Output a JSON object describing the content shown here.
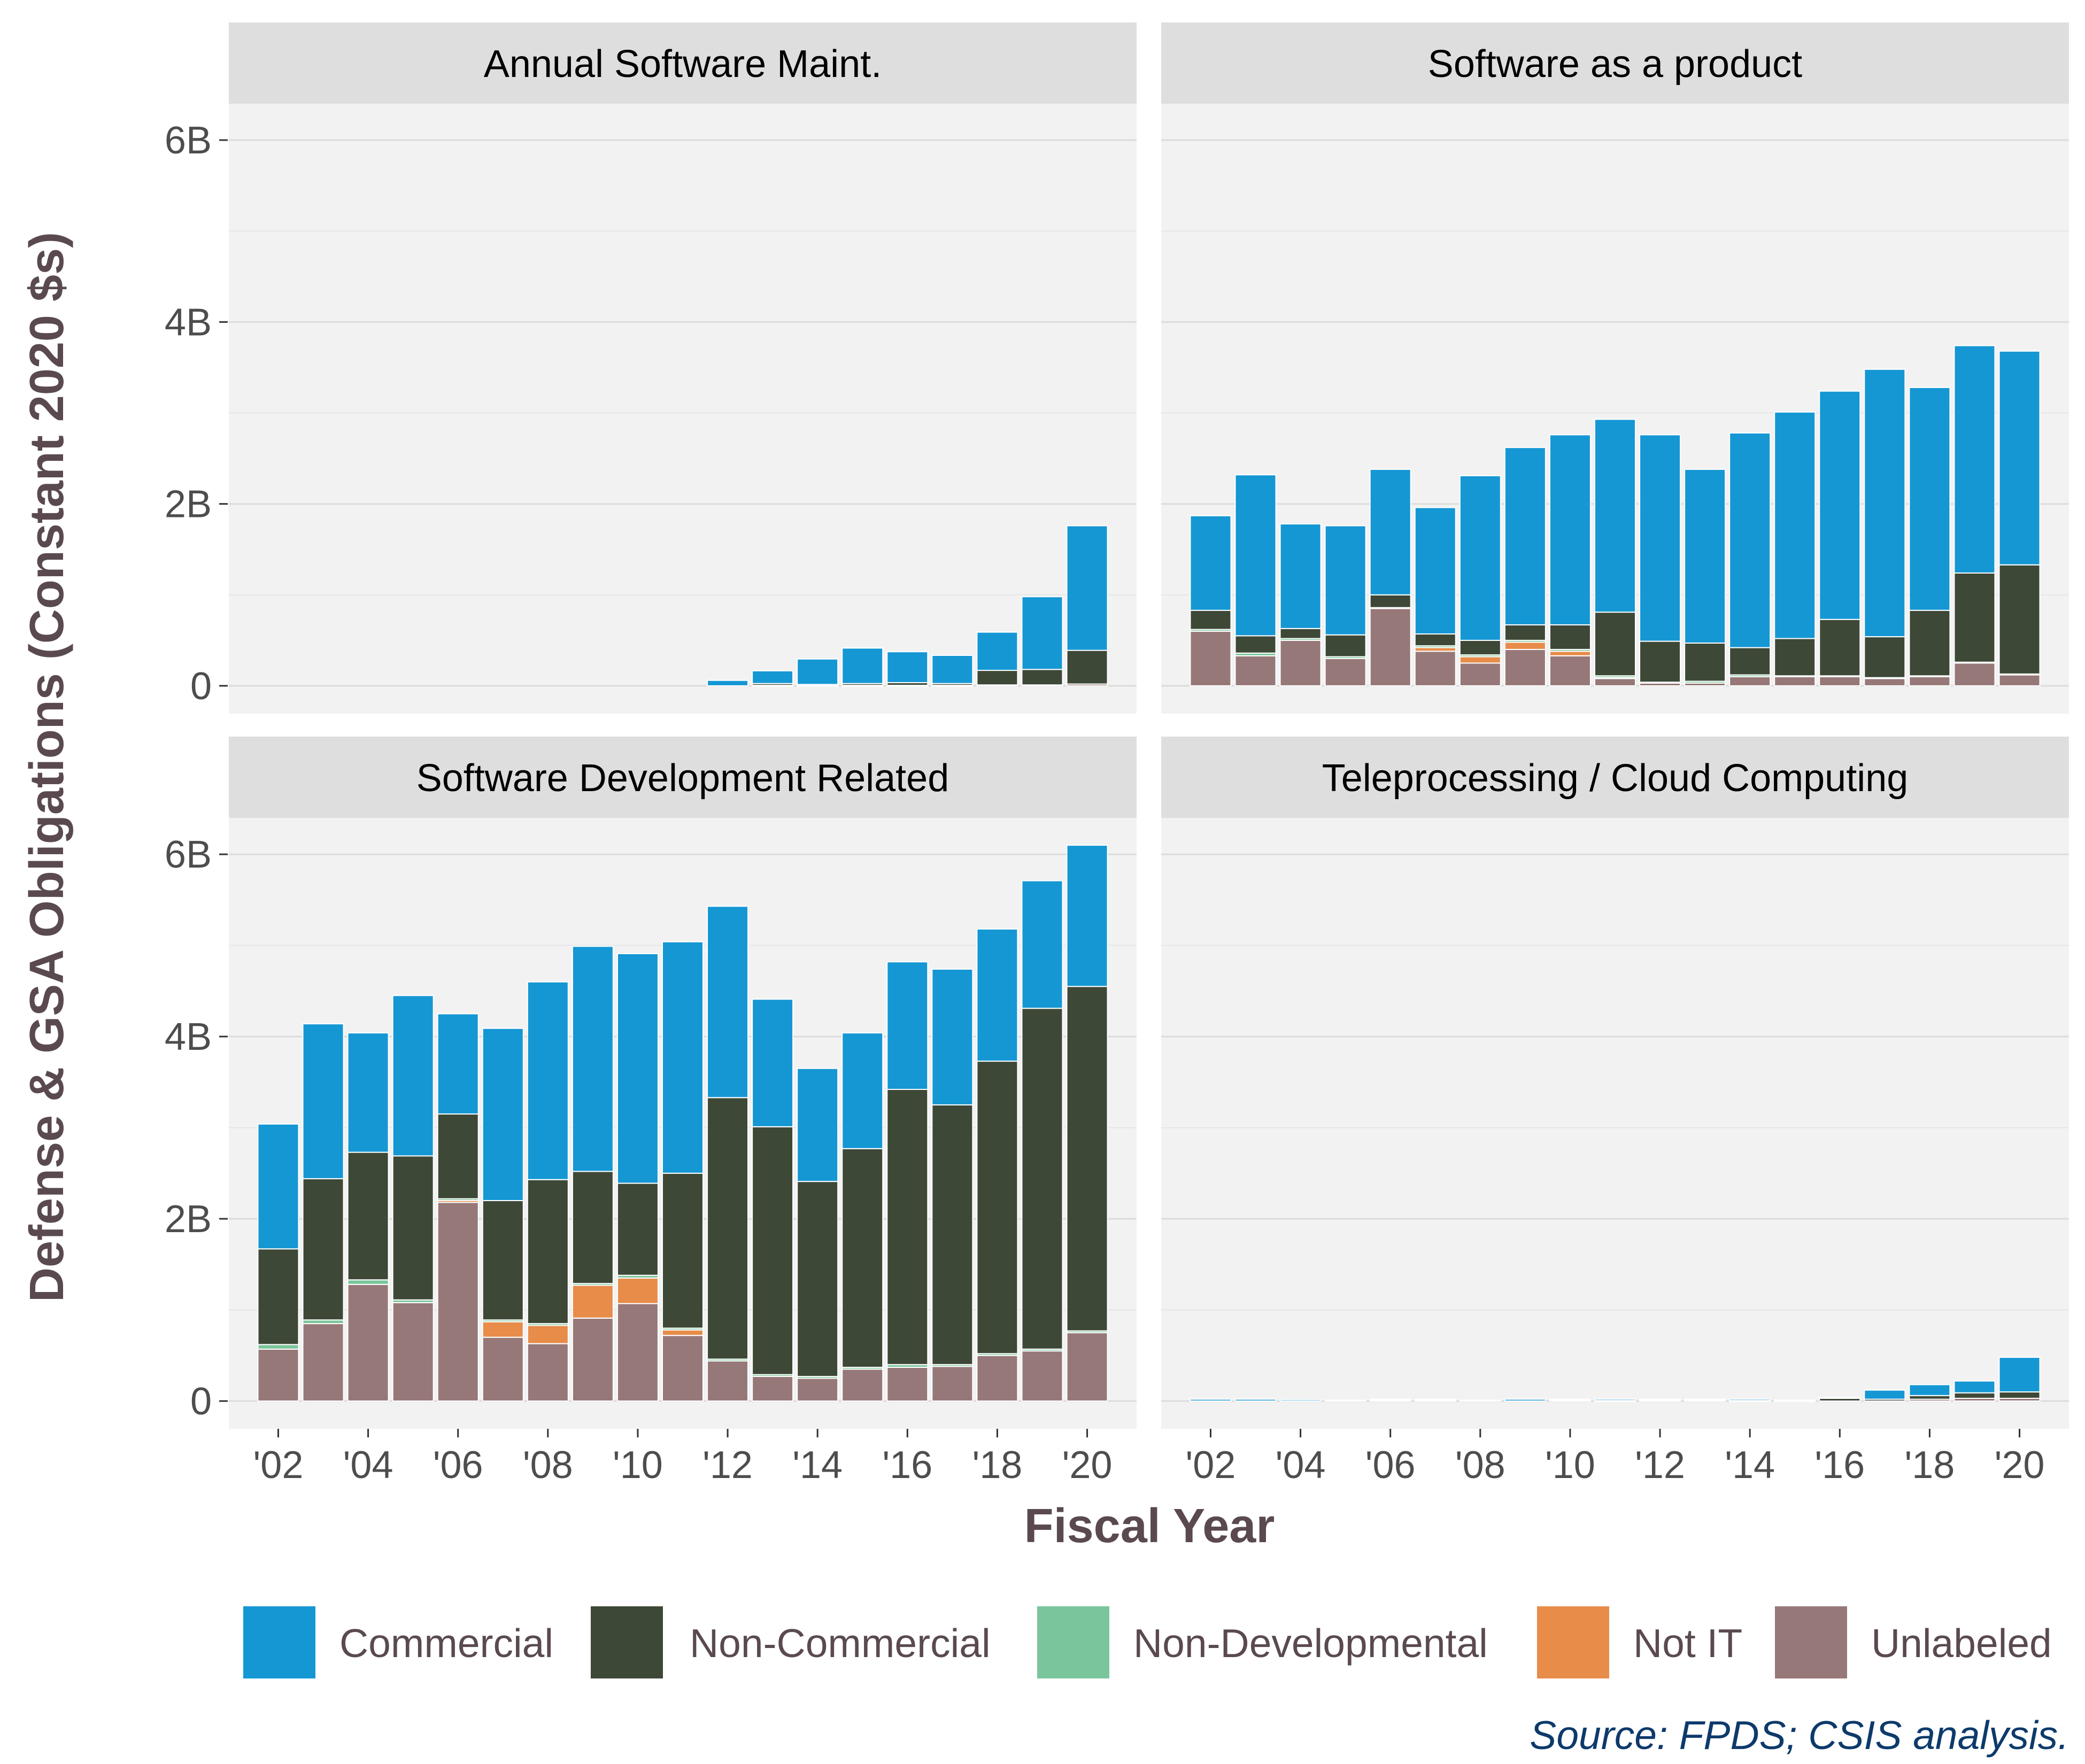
{
  "chart_data": {
    "type": "bar",
    "stacked": true,
    "facet_layout": "2x2",
    "xlabel": "Fiscal Year",
    "ylabel": "Defense & GSA Obligations (Constant 2020 $s)",
    "caption": "Source: FPDS; CSIS analysis.",
    "ylim": [
      0,
      6.4
    ],
    "yticks": [
      0,
      2,
      4,
      6
    ],
    "ytick_labels": [
      "0",
      "2B",
      "4B",
      "6B"
    ],
    "xlim": [
      2000.9,
      2021.1
    ],
    "xticks": [
      2002,
      2004,
      2006,
      2008,
      2010,
      2012,
      2014,
      2016,
      2018,
      2020
    ],
    "xtick_labels": [
      "'02",
      "'04",
      "'06",
      "'08",
      "'10",
      "'12",
      "'14",
      "'16",
      "'18",
      "'20"
    ],
    "legend_position": "bottom",
    "series": [
      {
        "name": "Commercial",
        "color": "#1597d4"
      },
      {
        "name": "Non-Commercial",
        "color": "#3d4837"
      },
      {
        "name": "Non-Developmental",
        "color": "#7ac59b"
      },
      {
        "name": "Not IT",
        "color": "#e88c4a"
      },
      {
        "name": "Unlabeled",
        "color": "#977878"
      }
    ],
    "years": [
      2002,
      2003,
      2004,
      2005,
      2006,
      2007,
      2008,
      2009,
      2010,
      2011,
      2012,
      2013,
      2014,
      2015,
      2016,
      2017,
      2018,
      2019,
      2020
    ],
    "facets": [
      {
        "title": "Annual Software Maint.",
        "stack": {
          "Unlabeled": [
            0,
            0,
            0,
            0,
            0,
            0,
            0,
            0,
            0,
            0,
            0,
            0.005,
            0.005,
            0.005,
            0.005,
            0.005,
            0.01,
            0.01,
            0.02
          ],
          "Not IT": [
            0,
            0,
            0,
            0,
            0,
            0,
            0,
            0,
            0,
            0,
            0,
            0,
            0,
            0,
            0,
            0,
            0,
            0,
            0
          ],
          "Non-Developmental": [
            0,
            0,
            0,
            0,
            0,
            0,
            0,
            0,
            0,
            0,
            0,
            0,
            0,
            0,
            0,
            0,
            0,
            0,
            0
          ],
          "Non-Commercial": [
            0,
            0,
            0,
            0,
            0,
            0,
            0,
            0,
            0,
            0,
            0,
            0.02,
            0.01,
            0.02,
            0.03,
            0.02,
            0.16,
            0.17,
            0.37
          ],
          "Commercial": [
            0,
            0,
            0,
            0,
            0,
            0,
            0,
            0,
            0,
            0,
            0.06,
            0.14,
            0.28,
            0.39,
            0.34,
            0.31,
            0.42,
            0.8,
            1.37
          ]
        }
      },
      {
        "title": "Software as a product",
        "stack": {
          "Unlabeled": [
            0.6,
            0.33,
            0.5,
            0.3,
            0.85,
            0.38,
            0.25,
            0.4,
            0.33,
            0.08,
            0.03,
            0.03,
            0.1,
            0.1,
            0.1,
            0.08,
            0.1,
            0.25,
            0.12
          ],
          "Not IT": [
            0,
            0,
            0,
            0,
            0,
            0.04,
            0.07,
            0.08,
            0.05,
            0.01,
            0,
            0,
            0,
            0,
            0,
            0,
            0,
            0,
            0
          ],
          "Non-Developmental": [
            0.02,
            0.03,
            0.02,
            0.02,
            0.01,
            0.02,
            0.02,
            0.02,
            0.02,
            0.02,
            0.01,
            0.02,
            0.02,
            0.01,
            0.01,
            0.01,
            0.01,
            0.01,
            0.01
          ],
          "Non-Commercial": [
            0.21,
            0.19,
            0.11,
            0.24,
            0.14,
            0.13,
            0.16,
            0.17,
            0.27,
            0.7,
            0.45,
            0.42,
            0.3,
            0.41,
            0.62,
            0.45,
            0.72,
            0.98,
            1.2
          ],
          "Commercial": [
            1.04,
            1.77,
            1.15,
            1.2,
            1.38,
            1.39,
            1.81,
            1.95,
            2.09,
            2.12,
            2.27,
            1.91,
            2.36,
            2.49,
            2.51,
            2.94,
            2.45,
            2.5,
            2.35
          ]
        }
      },
      {
        "title": "Software Development Related",
        "stack": {
          "Unlabeled": [
            0.57,
            0.85,
            1.28,
            1.08,
            2.18,
            0.7,
            0.63,
            0.91,
            1.07,
            0.72,
            0.44,
            0.27,
            0.25,
            0.35,
            0.37,
            0.38,
            0.5,
            0.55,
            0.75
          ],
          "Not IT": [
            0,
            0,
            0,
            0,
            0.02,
            0.17,
            0.2,
            0.36,
            0.28,
            0.06,
            0,
            0,
            0,
            0,
            0,
            0,
            0,
            0,
            0
          ],
          "Non-Developmental": [
            0.05,
            0.04,
            0.05,
            0.03,
            0.02,
            0.02,
            0.02,
            0.02,
            0.03,
            0.02,
            0.02,
            0.02,
            0.02,
            0.02,
            0.03,
            0.02,
            0.02,
            0.02,
            0.02
          ],
          "Non-Commercial": [
            1.05,
            1.55,
            1.4,
            1.58,
            0.93,
            1.31,
            1.58,
            1.23,
            1.01,
            1.7,
            2.87,
            2.72,
            2.14,
            2.4,
            3.02,
            2.85,
            3.21,
            3.74,
            3.78
          ],
          "Commercial": [
            1.37,
            1.7,
            1.31,
            1.76,
            1.1,
            1.89,
            2.17,
            2.47,
            2.52,
            2.54,
            2.1,
            1.4,
            1.24,
            1.27,
            1.4,
            1.49,
            1.45,
            1.4,
            1.55
          ]
        }
      },
      {
        "title": "Teleprocessing / Cloud Computing",
        "stack": {
          "Unlabeled": [
            0,
            0,
            0,
            0,
            0,
            0,
            0,
            0,
            0,
            0,
            0,
            0,
            0,
            0,
            0,
            0,
            0.02,
            0.03,
            0.03
          ],
          "Not IT": [
            0,
            0,
            0,
            0,
            0,
            0,
            0,
            0,
            0,
            0,
            0,
            0,
            0,
            0,
            0,
            0,
            0,
            0,
            0
          ],
          "Non-Developmental": [
            0,
            0,
            0,
            0,
            0,
            0,
            0,
            0,
            0,
            0,
            0,
            0,
            0,
            0,
            0,
            0,
            0,
            0,
            0
          ],
          "Non-Commercial": [
            0,
            0,
            0,
            0,
            0.01,
            0.01,
            0,
            0,
            0.01,
            0.005,
            0.01,
            0.01,
            0.005,
            0.005,
            0.03,
            0.02,
            0.04,
            0.06,
            0.07
          ],
          "Commercial": [
            0.02,
            0.02,
            0.015,
            0.01,
            0.01,
            0.01,
            0.01,
            0.02,
            0.01,
            0.015,
            0.01,
            0.01,
            0.015,
            0.005,
            0.01,
            0.1,
            0.12,
            0.13,
            0.38
          ]
        }
      }
    ]
  }
}
